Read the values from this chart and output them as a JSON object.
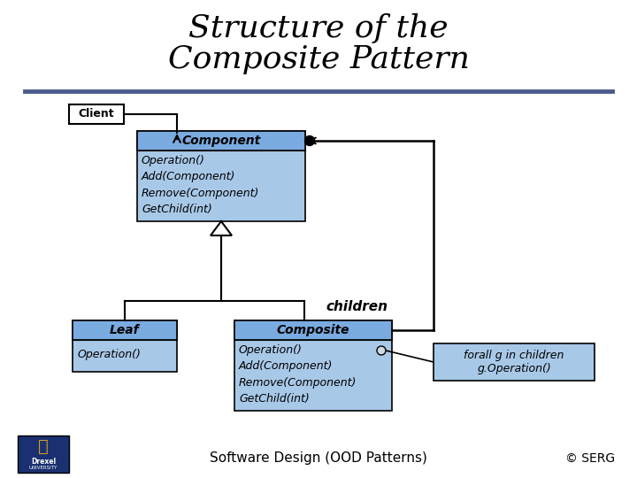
{
  "title_line1": "Structure of the",
  "title_line2": "Composite Pattern",
  "title_fontsize": 26,
  "title_style": "italic",
  "title_font": "serif",
  "bg_color": "#ffffff",
  "box_fill": "#a8c8e8",
  "box_header_fill": "#7aabe0",
  "box_edge": "#000000",
  "separator_color": "#4a5a8a",
  "footer_text": "Software Design (OOD Patterns)",
  "copyright_text": "© SERG",
  "client_label": "Client",
  "component_header": "Component",
  "component_body": "Operation()\nAdd(Component)\nRemove(Component)\nGetChild(int)",
  "leaf_header": "Leaf",
  "leaf_body": "Operation()",
  "composite_header": "Composite",
  "composite_body": "Operation()\nAdd(Component)\nRemove(Component)\nGetChild(int)",
  "note_text": "forall g in children\ng.Operation()",
  "children_label": "children",
  "note_fill": "#a8c8e8",
  "client_fill": "#ffffff",
  "label_fontsize": 9,
  "header_fontsize": 10,
  "body_fontsize": 9,
  "children_fontsize": 11,
  "footer_fontsize": 11,
  "copyright_fontsize": 10,
  "client_fontsize": 9,
  "note_fontsize": 9,
  "drexel_fill": "#1a3070",
  "drexel_text_color": "#d4a020",
  "drexel_label": "Drexel\nUNIVERSITY"
}
